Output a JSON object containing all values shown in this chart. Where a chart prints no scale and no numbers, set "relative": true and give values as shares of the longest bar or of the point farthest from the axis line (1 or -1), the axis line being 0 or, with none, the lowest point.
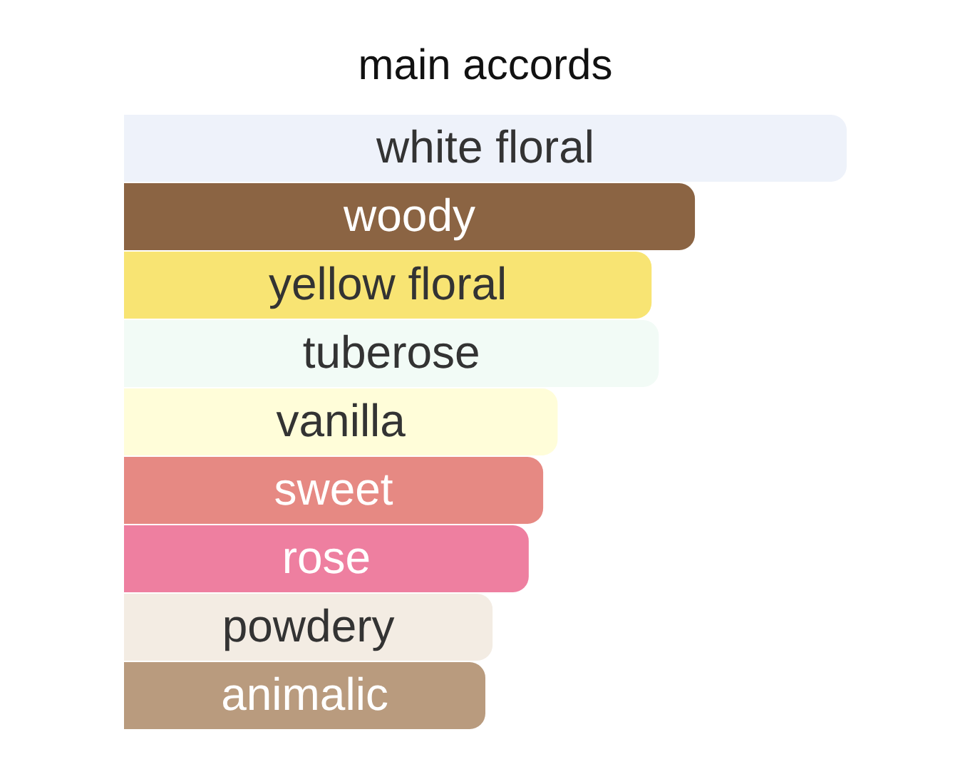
{
  "chart_data": {
    "type": "bar",
    "title": "main accords",
    "orientation": "horizontal",
    "relative": true,
    "categories": [
      "white floral",
      "woody",
      "yellow floral",
      "tuberose",
      "vanilla",
      "sweet",
      "rose",
      "powdery",
      "animalic"
    ],
    "values": [
      1,
      0.79,
      0.73,
      0.74,
      0.6,
      0.58,
      0.56,
      0.51,
      0.5
    ],
    "colors": [
      "#eef2fa",
      "#8b6443",
      "#f8e473",
      "#f2fbf6",
      "#fffdd9",
      "#e68983",
      "#ee7fa0",
      "#f3ece3",
      "#b99b7e"
    ]
  }
}
